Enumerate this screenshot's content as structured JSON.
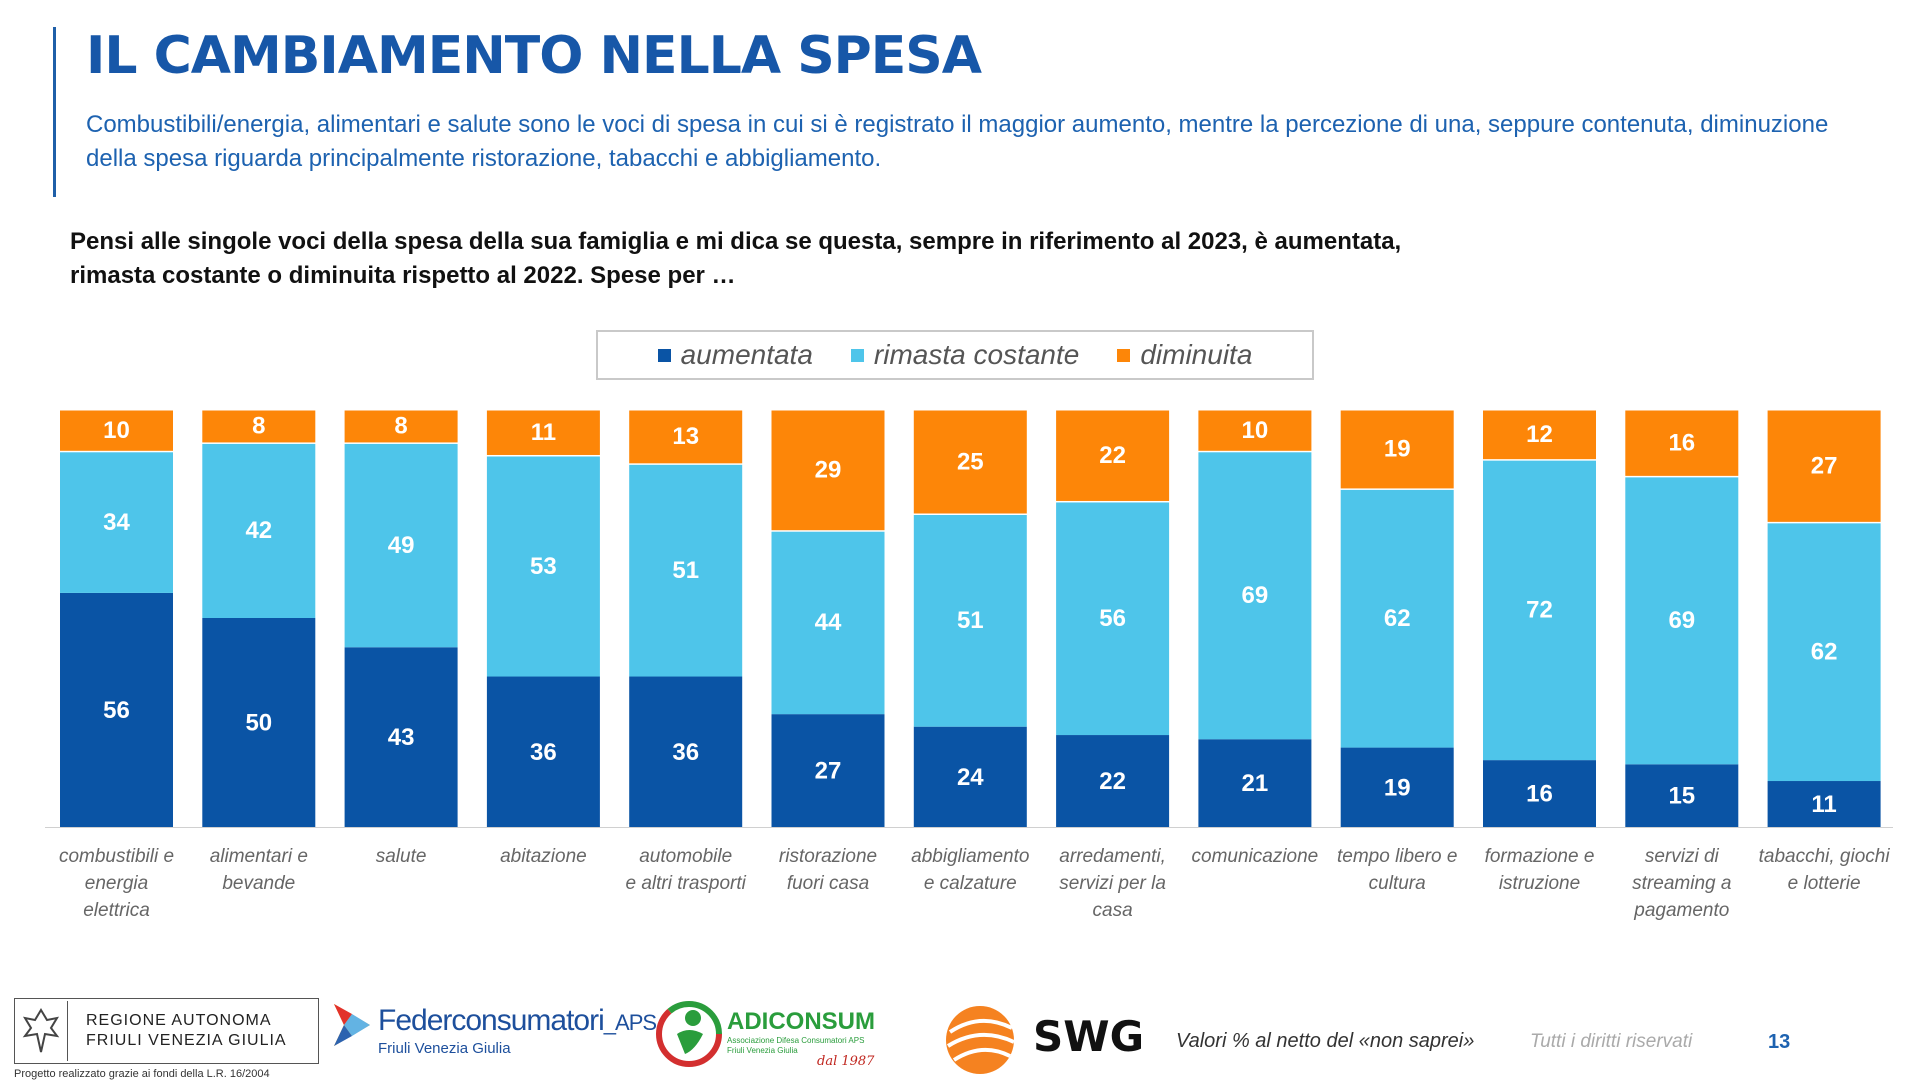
{
  "title": "IL CAMBIAMENTO NELLA SPESA",
  "subtitle": "Combustibili/energia, alimentari e salute sono le voci di spesa in cui si è registrato il maggior aumento, mentre la percezione di una, seppure contenuta, diminuzione della spesa riguarda principalmente ristorazione, tabacchi e abbigliamento.",
  "question": "Pensi alle singole voci della spesa della sua famiglia e mi dica se questa, sempre in riferimento al 2023, è aumentata, rimasta costante o diminuita rispetto al 2022. Spese per …",
  "legend": {
    "items": [
      {
        "label": "aumentata",
        "color": "#0a54a5"
      },
      {
        "label": "rimasta costante",
        "color": "#4ec5ea"
      },
      {
        "label": "diminuita",
        "color": "#fd8608"
      }
    ]
  },
  "chart_data": {
    "type": "bar",
    "stacked": true,
    "orientation": "vertical",
    "categories": [
      "combustibili e energia elettrica",
      "alimentari e bevande",
      "salute",
      "abitazione",
      "automobile e altri trasporti",
      "ristorazione fuori casa",
      "abbigliamento e calzature",
      "arredamenti, servizi per la casa",
      "comunicazione",
      "tempo libero e cultura",
      "formazione e istruzione",
      "servizi di streaming a pagamento",
      "tabacchi, giochi e lotterie"
    ],
    "category_lines": [
      [
        "combustibili e",
        "energia",
        "elettrica"
      ],
      [
        "alimentari e",
        "bevande"
      ],
      [
        "salute"
      ],
      [
        "abitazione"
      ],
      [
        "automobile",
        "e altri trasporti"
      ],
      [
        "ristorazione",
        "fuori casa"
      ],
      [
        "abbigliamento",
        "e calzature"
      ],
      [
        "arredamenti,",
        "servizi per la",
        "casa"
      ],
      [
        "comunicazione"
      ],
      [
        "tempo libero e",
        "cultura"
      ],
      [
        "formazione e",
        "istruzione"
      ],
      [
        "servizi di",
        "streaming a",
        "pagamento"
      ],
      [
        "tabacchi, giochi",
        "e lotterie"
      ]
    ],
    "series": [
      {
        "name": "aumentata",
        "color": "#0a54a5",
        "values": [
          56,
          50,
          43,
          36,
          36,
          27,
          24,
          22,
          21,
          19,
          16,
          15,
          11
        ]
      },
      {
        "name": "rimasta costante",
        "color": "#4ec5ea",
        "values": [
          34,
          42,
          49,
          53,
          51,
          44,
          51,
          56,
          69,
          62,
          72,
          69,
          62
        ]
      },
      {
        "name": "diminuita",
        "color": "#fd8608",
        "values": [
          10,
          8,
          8,
          11,
          13,
          29,
          25,
          22,
          10,
          19,
          12,
          16,
          27
        ]
      }
    ],
    "grid": false,
    "legend_position": "top-center"
  },
  "footer": {
    "regione_lines": [
      "REGIONE AUTONOMA",
      "FRIULI VENEZIA GIULIA"
    ],
    "project_note": "Progetto realizzato grazie ai fondi della L.R. 16/2004",
    "federconsumatori_name": "Federconsumatori",
    "federconsumatori_suffix": "_APS",
    "federconsumatori_sub": "Friuli Venezia Giulia",
    "adiconsum_name": "ADICONSUM",
    "adiconsum_sub": "Associazione Difesa Consumatori APS Friuli Venezia Giulia",
    "adiconsum_since": "dal 1987",
    "swg_name": "SWG",
    "note": "Valori % al netto del «non saprei»",
    "rights": "Tutti i diritti riservati",
    "page_number": "13"
  }
}
